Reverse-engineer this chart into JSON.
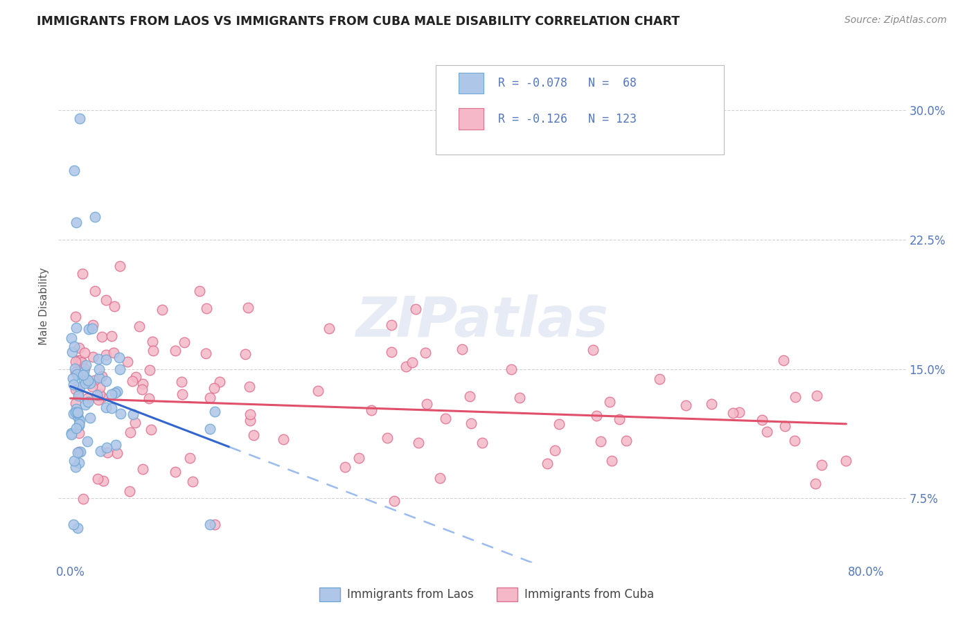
{
  "title": "IMMIGRANTS FROM LAOS VS IMMIGRANTS FROM CUBA MALE DISABILITY CORRELATION CHART",
  "source": "Source: ZipAtlas.com",
  "ylabel": "Male Disability",
  "legend_labels": [
    "Immigrants from Laos",
    "Immigrants from Cuba"
  ],
  "legend_R": [
    -0.078,
    -0.126
  ],
  "legend_N": [
    68,
    123
  ],
  "laos_color": "#aec6e8",
  "cuba_color": "#f4b8c8",
  "laos_edge_color": "#6fa8d4",
  "cuba_edge_color": "#e07090",
  "trend_laos_solid_color": "#3366cc",
  "trend_laos_dash_color": "#99bbee",
  "trend_cuba_color": "#e0506a",
  "y_tick_vals": [
    0.075,
    0.15,
    0.225,
    0.3
  ],
  "y_tick_labels": [
    "7.5%",
    "15.0%",
    "22.5%",
    "30.0%"
  ],
  "x_tick_vals": [
    0.0,
    0.1,
    0.2,
    0.3,
    0.4,
    0.5,
    0.6,
    0.7,
    0.8
  ],
  "x_tick_labels": [
    "0.0%",
    "",
    "",
    "",
    "",
    "",
    "",
    "",
    "80.0%"
  ],
  "xlim": [
    -0.012,
    0.84
  ],
  "ylim": [
    0.038,
    0.335
  ],
  "watermark": "ZIPatlas",
  "title_color": "#222222",
  "source_color": "#888888",
  "tick_color": "#5577bb",
  "ylabel_color": "#555555",
  "grid_color": "#cccccc"
}
